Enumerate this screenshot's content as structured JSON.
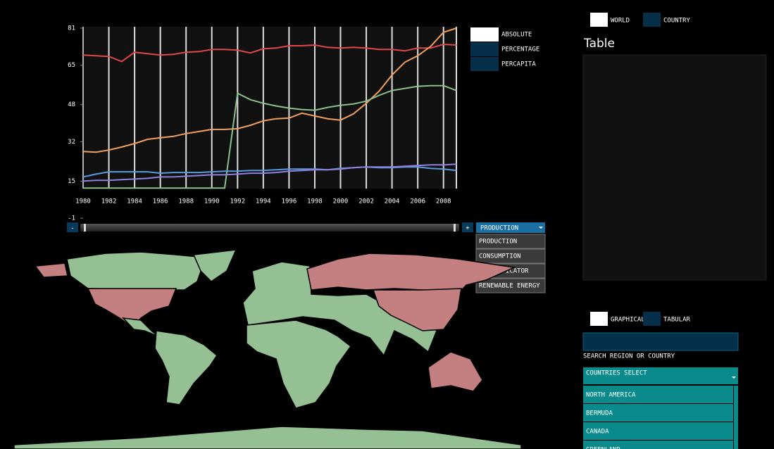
{
  "chart_data": {
    "type": "line",
    "x": [
      1980,
      1981,
      1982,
      1983,
      1984,
      1985,
      1986,
      1987,
      1988,
      1989,
      1990,
      1991,
      1992,
      1993,
      1994,
      1995,
      1996,
      1997,
      1998,
      1999,
      2000,
      2001,
      2002,
      2003,
      2004,
      2005,
      2006,
      2007,
      2008,
      2009
    ],
    "xlim": [
      1980,
      2009
    ],
    "xticks": [
      1980,
      1982,
      1984,
      1986,
      1988,
      1990,
      1992,
      1994,
      1996,
      1998,
      2000,
      2002,
      2004,
      2006,
      2008
    ],
    "ylim": [
      -1,
      81
    ],
    "yticks": [
      -1,
      15,
      32,
      48,
      65,
      81
    ],
    "grid": true,
    "series": [
      {
        "color": "#e04848",
        "values": [
          69.4,
          69.1,
          68.8,
          66.6,
          70.6,
          70,
          69.4,
          69.7,
          70.6,
          70.9,
          71.8,
          71.8,
          71.5,
          70.3,
          72.1,
          72.4,
          73.4,
          73.4,
          73.7,
          72.7,
          72.4,
          72.7,
          72.4,
          71.8,
          71.8,
          71.2,
          72.4,
          72.4,
          74,
          73.7
        ]
      },
      {
        "color": "#f0a060",
        "values": [
          27.8,
          27.5,
          28.4,
          29.7,
          31.2,
          33,
          33.7,
          34.3,
          35.5,
          36.4,
          37.3,
          37.3,
          37.6,
          39.1,
          41,
          41.9,
          42.2,
          44.3,
          43.1,
          41.9,
          41.3,
          44,
          48.6,
          53.8,
          60.8,
          66.3,
          69.1,
          73.1,
          79.2,
          81
        ]
      },
      {
        "color": "#8cc08c",
        "values": [
          12,
          12,
          12,
          12,
          12,
          12,
          12,
          12,
          12,
          12,
          12,
          12,
          52.9,
          50.1,
          48.6,
          47.4,
          46.5,
          45.9,
          45.6,
          46.8,
          47.7,
          48.3,
          49.5,
          52,
          54.1,
          55,
          55.9,
          56.2,
          56.2,
          54.1
        ]
      },
      {
        "color": "#5a9ae0",
        "values": [
          16.8,
          18,
          19,
          19,
          19,
          19,
          18.4,
          18.7,
          18.7,
          18.7,
          19,
          19.3,
          19.3,
          19.6,
          19.6,
          19.9,
          20.2,
          20.2,
          20.2,
          19.9,
          20.5,
          20.8,
          21.1,
          20.8,
          20.8,
          21.1,
          21.1,
          20.5,
          20.2,
          19.6
        ]
      },
      {
        "color": "#9080e0",
        "values": [
          15,
          15.3,
          15.3,
          15.6,
          15.9,
          16.2,
          16.8,
          16.8,
          17.1,
          17.4,
          17.7,
          17.7,
          18,
          18.4,
          18.4,
          18.7,
          19.3,
          19.6,
          19.9,
          19.9,
          20.2,
          20.8,
          21.1,
          21.1,
          21.1,
          21.4,
          21.7,
          22,
          22,
          22.3
        ]
      }
    ]
  },
  "chart_modes": [
    "ABSOLUTE",
    "PERCENTAGE",
    "PERCAPITA"
  ],
  "scope_toggle": [
    "WORLD",
    "COUNTRY"
  ],
  "table_panel": {
    "title": "Table"
  },
  "view_toggle": [
    "GRAPHICAL",
    "TABULAR"
  ],
  "search": {
    "label": "SEARCH REGION OR COUNTRY"
  },
  "countries_select": {
    "label": "COUNTRIES SELECT",
    "options": [
      "NORTH AMERICA",
      "BERMUDA",
      "CANADA",
      "GREENLAND"
    ]
  },
  "indicator_dropdown": {
    "selected": "PRODUCTION",
    "options": [
      "PRODUCTION",
      "CONSUMPTION",
      "CO2 INDICATOR",
      "RENEWABLE ENERGY"
    ]
  },
  "slider": {
    "decrement": "-",
    "increment": "+"
  }
}
